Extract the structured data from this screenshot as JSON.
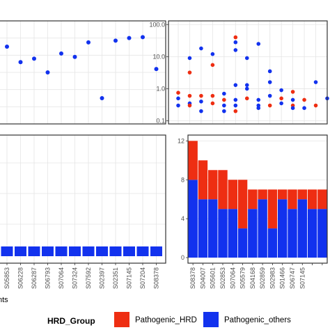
{
  "colors": {
    "hrd": "#ee2e12",
    "others": "#1232ee",
    "panel_bg": "#ffffff",
    "grid": "#e5e5e5",
    "frame": "#333333"
  },
  "legend": {
    "title": "HRD_Group",
    "items": [
      {
        "label": "Pathogenic_HRD",
        "color": "#ee2e12"
      },
      {
        "label": "Pathogenic_others",
        "color": "#1232ee"
      }
    ]
  },
  "chart_data": [
    {
      "id": "top_left",
      "type": "scatter",
      "categories": [
        "S05853",
        "S06228",
        "S06287",
        "S06793",
        "S07064",
        "S07324",
        "S07592",
        "S02397",
        "S02351",
        "S07145",
        "S07204",
        "S08378"
      ],
      "series": [
        {
          "color": "#1232ee",
          "values": [
            0.9,
            0.72,
            0.76,
            0.6,
            0.82,
            0.78,
            0.95,
            0.3,
            0.97,
            1.0,
            1.01,
            0.64
          ]
        }
      ],
      "ylim": [
        0,
        1.2
      ],
      "grid": true
    },
    {
      "id": "top_right",
      "type": "scatter",
      "y_scale": "log10",
      "ylim": [
        0.08,
        130
      ],
      "y_ticks": [
        "0.1",
        "1.0",
        "10.0",
        "100.0"
      ],
      "y_tick_values": [
        0.1,
        1,
        10,
        100
      ],
      "grid": true,
      "columns": 14,
      "points": [
        {
          "x": 1,
          "y": 0.75,
          "group": "HRD"
        },
        {
          "x": 1,
          "y": 0.5,
          "group": "others"
        },
        {
          "x": 1,
          "y": 0.3,
          "group": "others"
        },
        {
          "x": 2,
          "y": 9.0,
          "group": "others"
        },
        {
          "x": 2,
          "y": 3.2,
          "group": "HRD"
        },
        {
          "x": 2,
          "y": 0.6,
          "group": "HRD"
        },
        {
          "x": 2,
          "y": 0.35,
          "group": "others"
        },
        {
          "x": 2,
          "y": 0.3,
          "group": "HRD"
        },
        {
          "x": 3,
          "y": 18.0,
          "group": "others"
        },
        {
          "x": 3,
          "y": 0.6,
          "group": "HRD"
        },
        {
          "x": 3,
          "y": 0.4,
          "group": "others"
        },
        {
          "x": 3,
          "y": 0.2,
          "group": "others"
        },
        {
          "x": 4,
          "y": 12.0,
          "group": "others"
        },
        {
          "x": 4,
          "y": 5.5,
          "group": "HRD"
        },
        {
          "x": 4,
          "y": 0.6,
          "group": "HRD"
        },
        {
          "x": 4,
          "y": 0.35,
          "group": "HRD"
        },
        {
          "x": 5,
          "y": 0.7,
          "group": "others"
        },
        {
          "x": 5,
          "y": 0.45,
          "group": "HRD"
        },
        {
          "x": 5,
          "y": 0.3,
          "group": "others"
        },
        {
          "x": 5,
          "y": 0.2,
          "group": "others"
        },
        {
          "x": 6,
          "y": 40.0,
          "group": "HRD"
        },
        {
          "x": 6,
          "y": 28.0,
          "group": "others"
        },
        {
          "x": 6,
          "y": 16.0,
          "group": "others"
        },
        {
          "x": 6,
          "y": 1.3,
          "group": "others"
        },
        {
          "x": 6,
          "y": 0.45,
          "group": "others"
        },
        {
          "x": 6,
          "y": 0.3,
          "group": "others"
        },
        {
          "x": 6,
          "y": 0.2,
          "group": "HRD"
        },
        {
          "x": 7,
          "y": 9.0,
          "group": "others"
        },
        {
          "x": 7,
          "y": 1.3,
          "group": "others"
        },
        {
          "x": 7,
          "y": 1.0,
          "group": "others"
        },
        {
          "x": 7,
          "y": 0.5,
          "group": "HRD"
        },
        {
          "x": 8,
          "y": 25.0,
          "group": "others"
        },
        {
          "x": 8,
          "y": 0.45,
          "group": "others"
        },
        {
          "x": 8,
          "y": 0.3,
          "group": "others"
        },
        {
          "x": 8,
          "y": 0.25,
          "group": "others"
        },
        {
          "x": 9,
          "y": 3.5,
          "group": "others"
        },
        {
          "x": 9,
          "y": 1.6,
          "group": "others"
        },
        {
          "x": 9,
          "y": 0.6,
          "group": "others"
        },
        {
          "x": 9,
          "y": 0.3,
          "group": "HRD"
        },
        {
          "x": 10,
          "y": 0.9,
          "group": "others"
        },
        {
          "x": 10,
          "y": 0.5,
          "group": "HRD"
        },
        {
          "x": 10,
          "y": 0.35,
          "group": "others"
        },
        {
          "x": 11,
          "y": 0.8,
          "group": "HRD"
        },
        {
          "x": 11,
          "y": 0.45,
          "group": "others"
        },
        {
          "x": 11,
          "y": 0.3,
          "group": "HRD"
        },
        {
          "x": 11,
          "y": 0.25,
          "group": "others"
        },
        {
          "x": 12,
          "y": 0.45,
          "group": "HRD"
        },
        {
          "x": 12,
          "y": 0.25,
          "group": "others"
        },
        {
          "x": 13,
          "y": 1.6,
          "group": "others"
        },
        {
          "x": 13,
          "y": 0.3,
          "group": "HRD"
        },
        {
          "x": 14,
          "y": 0.5,
          "group": "others"
        }
      ]
    },
    {
      "id": "bottom_left",
      "type": "bar",
      "categories": [
        "S05853",
        "S06228",
        "S06287",
        "S06793",
        "S07064",
        "S07324",
        "S07592",
        "S02397",
        "S02351",
        "S07145",
        "S07204",
        "S08378"
      ],
      "series": [
        {
          "color": "#1232ee",
          "values": [
            1,
            1,
            1,
            1,
            1,
            1,
            1,
            1,
            1,
            1,
            1,
            1
          ]
        }
      ],
      "xlabel_fragment": "nts"
    },
    {
      "id": "bottom_right",
      "type": "bar",
      "stacked": true,
      "categories": [
        "S08378",
        "S04007",
        "S05601",
        "S02853",
        "S07064",
        "S05579",
        "S04168",
        "S02859",
        "S02983",
        "S01466",
        "S06747",
        "S07145",
        "",
        ""
      ],
      "ylim": [
        0,
        12.6
      ],
      "y_ticks": [
        0,
        4,
        8,
        12
      ],
      "grid": true,
      "series": [
        {
          "group": "others",
          "color": "#1232ee",
          "values": [
            8,
            6,
            6,
            5,
            5,
            3,
            5,
            6,
            3,
            6,
            5,
            6,
            5,
            5
          ]
        },
        {
          "group": "HRD",
          "color": "#ee2e12",
          "values": [
            4,
            4,
            3,
            4,
            3,
            5,
            2,
            1,
            4,
            1,
            2,
            1,
            2,
            2
          ]
        }
      ]
    }
  ]
}
